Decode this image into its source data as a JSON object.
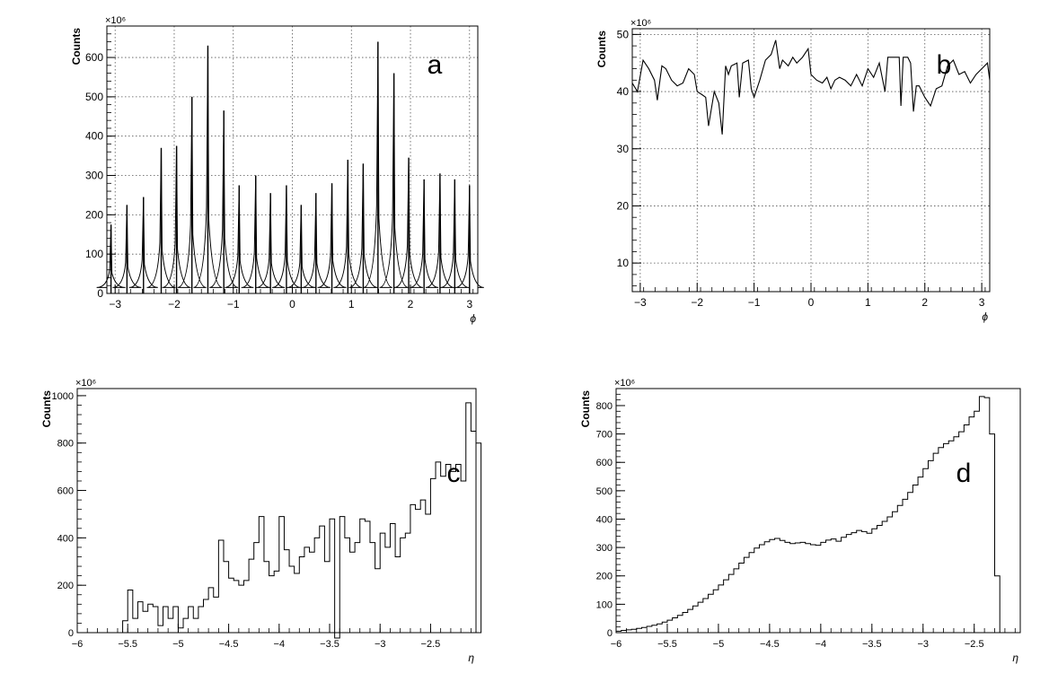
{
  "chart_data": [
    {
      "type": "histogram",
      "panel_label": "a",
      "title": "",
      "xlabel": "ϕ",
      "ylabel": "Counts",
      "y_multiplier": "×10⁶",
      "xlim": [
        -3.14,
        3.14
      ],
      "ylim": [
        0,
        680
      ],
      "grid": true,
      "x_ticks": [
        -3,
        -2,
        -1,
        0,
        1,
        2,
        3
      ],
      "y_ticks": [
        0,
        100,
        200,
        300,
        400,
        500,
        600
      ],
      "baseline_level": 15,
      "peaks": [
        {
          "x": -3.07,
          "y": 175
        },
        {
          "x": -2.8,
          "y": 225
        },
        {
          "x": -2.52,
          "y": 245
        },
        {
          "x": -2.22,
          "y": 370
        },
        {
          "x": -1.96,
          "y": 375
        },
        {
          "x": -1.7,
          "y": 500
        },
        {
          "x": -1.43,
          "y": 630
        },
        {
          "x": -1.16,
          "y": 465
        },
        {
          "x": -0.9,
          "y": 275
        },
        {
          "x": -0.62,
          "y": 300
        },
        {
          "x": -0.37,
          "y": 255
        },
        {
          "x": -0.1,
          "y": 275
        },
        {
          "x": 0.15,
          "y": 225
        },
        {
          "x": 0.4,
          "y": 255
        },
        {
          "x": 0.67,
          "y": 280
        },
        {
          "x": 0.94,
          "y": 340
        },
        {
          "x": 1.2,
          "y": 330
        },
        {
          "x": 1.45,
          "y": 640
        },
        {
          "x": 1.72,
          "y": 560
        },
        {
          "x": 1.97,
          "y": 345
        },
        {
          "x": 2.23,
          "y": 290
        },
        {
          "x": 2.5,
          "y": 305
        },
        {
          "x": 2.75,
          "y": 290
        },
        {
          "x": 3.0,
          "y": 275
        }
      ]
    },
    {
      "type": "line",
      "panel_label": "b",
      "title": "",
      "xlabel": "ϕ",
      "ylabel": "Counts",
      "y_multiplier": "×10⁶",
      "xlim": [
        -3.14,
        3.14
      ],
      "ylim": [
        5,
        51
      ],
      "grid": true,
      "x_ticks": [
        -3,
        -2,
        -1,
        0,
        1,
        2,
        3
      ],
      "y_ticks": [
        10,
        20,
        30,
        40,
        50
      ],
      "x": [
        -3.14,
        -3.05,
        -2.95,
        -2.85,
        -2.75,
        -2.7,
        -2.62,
        -2.55,
        -2.45,
        -2.35,
        -2.25,
        -2.15,
        -2.05,
        -2.0,
        -1.92,
        -1.85,
        -1.8,
        -1.7,
        -1.62,
        -1.56,
        -1.5,
        -1.45,
        -1.4,
        -1.3,
        -1.26,
        -1.2,
        -1.1,
        -1.05,
        -1.0,
        -0.9,
        -0.8,
        -0.7,
        -0.62,
        -0.55,
        -0.5,
        -0.4,
        -0.32,
        -0.25,
        -0.15,
        -0.05,
        0.0,
        0.1,
        0.2,
        0.28,
        0.35,
        0.42,
        0.5,
        0.6,
        0.7,
        0.8,
        0.9,
        1.0,
        1.1,
        1.2,
        1.3,
        1.35,
        1.45,
        1.55,
        1.58,
        1.62,
        1.7,
        1.75,
        1.8,
        1.85,
        1.9,
        2.0,
        2.1,
        2.2,
        2.3,
        2.4,
        2.5,
        2.6,
        2.7,
        2.8,
        2.9,
        3.0,
        3.1,
        3.14
      ],
      "values": [
        41.5,
        40.0,
        45.5,
        44.0,
        42.0,
        38.5,
        44.5,
        44.0,
        42.0,
        41.0,
        41.5,
        44.0,
        43.0,
        40.0,
        39.5,
        39.0,
        34.0,
        40.0,
        38.0,
        32.5,
        44.5,
        43.0,
        44.5,
        45.0,
        39.0,
        45.0,
        45.5,
        40.5,
        39.0,
        42.0,
        45.5,
        46.5,
        49.0,
        44.0,
        45.5,
        44.5,
        46.0,
        45.0,
        46.0,
        47.5,
        43.0,
        42.0,
        41.5,
        42.5,
        40.5,
        42.0,
        42.5,
        42.0,
        41.0,
        43.0,
        41.0,
        44.0,
        42.5,
        45.0,
        40.0,
        46.0,
        46.0,
        46.0,
        37.5,
        46.0,
        46.0,
        45.0,
        36.5,
        41.0,
        41.0,
        39.0,
        37.5,
        40.5,
        41.0,
        44.5,
        45.5,
        43.0,
        43.5,
        41.5,
        43.0,
        44.0,
        45.0,
        42.0
      ]
    },
    {
      "type": "histogram",
      "panel_label": "c",
      "title": "",
      "xlabel": "η",
      "ylabel": "Counts",
      "y_multiplier": "×10⁶",
      "xlim": [
        -6,
        -2.05
      ],
      "ylim": [
        0,
        1030
      ],
      "grid": false,
      "x_ticks": [
        -6,
        -5.5,
        -5,
        -4.5,
        -4,
        -3.5,
        -3,
        -2.5
      ],
      "x_tick_labels": [
        "−6",
        "−5.5",
        "−5",
        "−4.5",
        "−4",
        "−3.5",
        "−3",
        "−2.5"
      ],
      "y_ticks": [
        0,
        200,
        400,
        600,
        800,
        1000
      ],
      "bin_start": -5.55,
      "bin_width": 0.05,
      "values": [
        50,
        180,
        60,
        130,
        90,
        120,
        110,
        30,
        110,
        60,
        110,
        20,
        60,
        110,
        60,
        110,
        140,
        190,
        150,
        390,
        300,
        230,
        220,
        200,
        220,
        310,
        380,
        490,
        300,
        240,
        260,
        490,
        350,
        280,
        250,
        320,
        360,
        340,
        400,
        450,
        300,
        480,
        -60,
        490,
        400,
        340,
        380,
        480,
        470,
        380,
        270,
        420,
        360,
        460,
        320,
        400,
        420,
        540,
        520,
        560,
        500,
        650,
        720,
        660,
        710,
        680,
        710,
        640,
        970,
        850,
        800
      ]
    },
    {
      "type": "histogram",
      "panel_label": "d",
      "title": "",
      "xlabel": "η",
      "ylabel": "Counts",
      "y_multiplier": "×10⁶",
      "xlim": [
        -6,
        -2.05
      ],
      "ylim": [
        0,
        860
      ],
      "grid": false,
      "x_ticks": [
        -6,
        -5.5,
        -5,
        -4.5,
        -4,
        -3.5,
        -3,
        -2.5
      ],
      "x_tick_labels": [
        "−6",
        "−5.5",
        "−5",
        "−4.5",
        "−4",
        "−3.5",
        "−3",
        "−2.5"
      ],
      "y_ticks": [
        0,
        100,
        200,
        300,
        400,
        500,
        600,
        700,
        800
      ],
      "bin_start": -6.0,
      "bin_width": 0.05,
      "values": [
        5,
        8,
        10,
        12,
        15,
        18,
        22,
        26,
        31,
        37,
        44,
        52,
        61,
        71,
        82,
        94,
        107,
        120,
        135,
        151,
        168,
        186,
        205,
        225,
        245,
        265,
        282,
        298,
        310,
        320,
        328,
        332,
        325,
        318,
        314,
        316,
        318,
        314,
        310,
        308,
        318,
        326,
        330,
        322,
        336,
        346,
        352,
        360,
        356,
        350,
        366,
        378,
        392,
        408,
        426,
        448,
        470,
        494,
        520,
        548,
        578,
        606,
        632,
        652,
        666,
        676,
        690,
        708,
        732,
        760,
        780,
        832,
        828,
        700,
        200
      ]
    }
  ]
}
